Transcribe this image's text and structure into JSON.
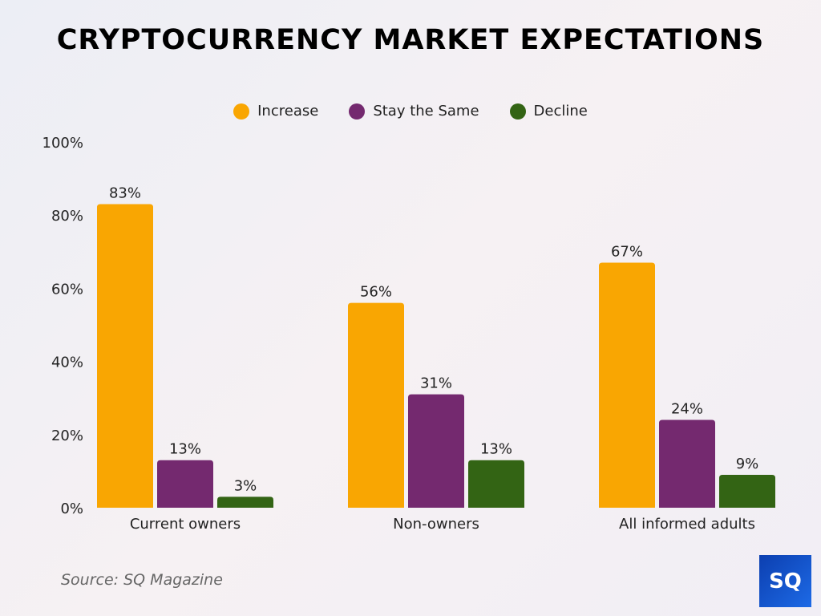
{
  "chart_data": {
    "type": "bar",
    "title": "CRYPTOCURRENCY MARKET EXPECTATIONS",
    "categories": [
      "Current owners",
      "Non-owners",
      "All informed adults"
    ],
    "series": [
      {
        "name": "Increase",
        "color": "#F9A602",
        "values": [
          83,
          56,
          67
        ]
      },
      {
        "name": "Stay the Same",
        "color": "#74296F",
        "values": [
          13,
          31,
          24
        ]
      },
      {
        "name": "Decline",
        "color": "#336414",
        "values": [
          3,
          13,
          9
        ]
      }
    ],
    "yticks": [
      "0%",
      "20%",
      "40%",
      "60%",
      "80%",
      "100%"
    ],
    "ylim": [
      0,
      100
    ],
    "grid": false,
    "legend": "top",
    "xlabel": "",
    "ylabel": ""
  },
  "source": "Source: SQ Magazine",
  "logo": "SQ"
}
